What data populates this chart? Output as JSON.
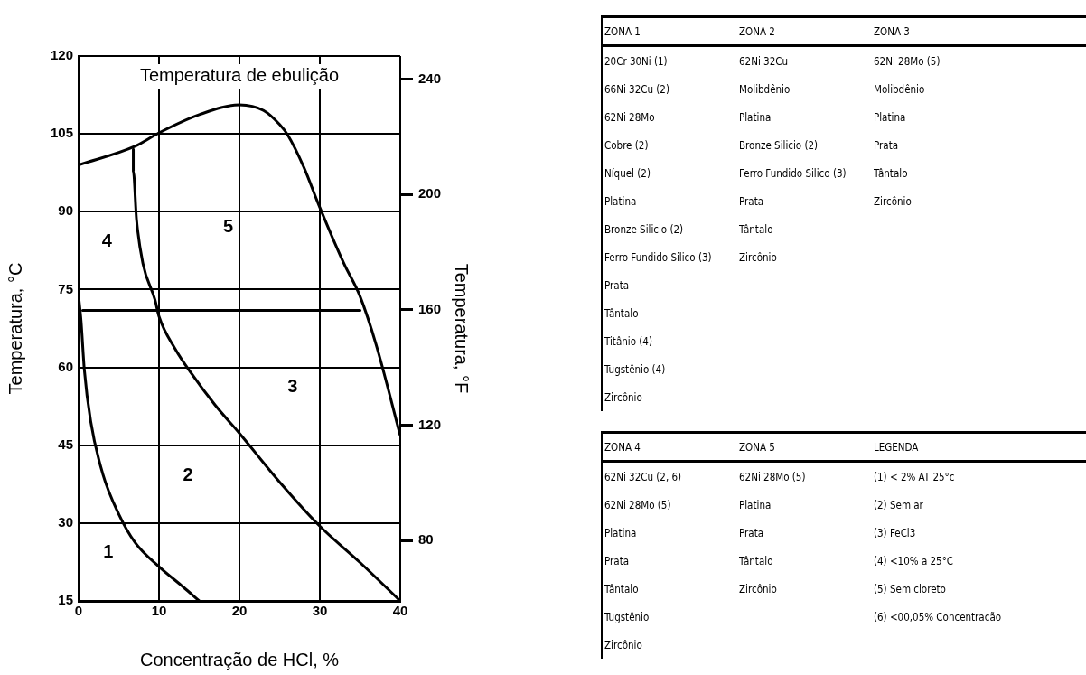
{
  "chart_data": [
    {
      "type": "line",
      "xlabel": "Concentração de HCl, %",
      "ylabel": "Temperatura, °C",
      "y2label": "Temperatura, °F",
      "xlim": [
        0,
        40
      ],
      "xticks": [
        0,
        10,
        20,
        30,
        40
      ],
      "ylim": [
        15,
        120
      ],
      "yticks": [
        15,
        30,
        45,
        60,
        75,
        90,
        105,
        120
      ],
      "y2lim": [
        59,
        248
      ],
      "y2ticks": [
        80,
        120,
        160,
        200,
        240
      ],
      "grid": true,
      "legend": false,
      "marker": "none",
      "line_style": "solid",
      "series": [
        {
          "color": "#000000",
          "x": [
            0,
            7,
            10,
            15,
            20,
            23,
            25,
            26,
            28,
            30,
            33,
            35,
            37,
            40
          ],
          "values": [
            99,
            102.6,
            105.2,
            108.7,
            110.6,
            109.5,
            106.8,
            104.8,
            98.6,
            90.8,
            80,
            73.7,
            64.4,
            46.9
          ]
        },
        {
          "color": "#000000",
          "x": [
            6.8,
            6.8,
            7.2,
            8,
            9.5,
            10,
            12,
            14,
            17,
            20,
            25,
            30,
            35,
            40
          ],
          "values": [
            102,
            97.8,
            88.5,
            80,
            73,
            69.8,
            63.6,
            58.9,
            52.7,
            47.3,
            37.9,
            29.4,
            22.4,
            15
          ]
        },
        {
          "color": "#000000",
          "x": [
            0,
            0.3,
            0.7,
            1.5,
            3,
            5,
            7,
            10,
            13,
            15
          ],
          "values": [
            73.7,
            69,
            59.7,
            49.6,
            39.5,
            31.7,
            26.3,
            21.6,
            17.7,
            15
          ]
        },
        {
          "color": "#000000",
          "x": [
            0.5,
            35
          ],
          "values": [
            71,
            71
          ]
        }
      ],
      "annotations": [
        "Temperatura de ebulição",
        "1",
        "2",
        "3",
        "4",
        "5"
      ]
    },
    {
      "type": "other",
      "categories": [
        "ZONA 1",
        "ZONA 2",
        "ZONA 3"
      ],
      "cell_labels": [
        [
          "20Cr 30Ni (1)",
          "62Ni 32Cu",
          "62Ni 28Mo (5)"
        ],
        [
          "66Ni 32Cu (2)",
          "Molibdênio",
          "Molibdênio"
        ],
        [
          "62Ni 28Mo",
          "Platina",
          "Platina"
        ],
        [
          "Cobre (2)",
          "Bronze Silicio (2)",
          "Prata"
        ],
        [
          "Níquel (2)",
          "Ferro Fundido Silico (3)",
          "Tântalo"
        ],
        [
          "Platina",
          "Prata",
          "Zircônio"
        ],
        [
          "Bronze Silicio (2)",
          "Tântalo",
          null
        ],
        [
          "Ferro Fundido Silico (3)",
          "Zircônio",
          null
        ],
        [
          "Prata",
          null,
          null
        ],
        [
          "Tântalo",
          null,
          null
        ],
        [
          "Titânio (4)",
          null,
          null
        ],
        [
          "Tugstênio (4)",
          null,
          null
        ],
        [
          "Zircônio",
          null,
          null
        ]
      ]
    },
    {
      "type": "other",
      "categories": [
        "ZONA 4",
        "ZONA 5",
        "LEGENDA"
      ],
      "cell_labels": [
        [
          "62Ni 32Cu (2, 6)",
          "62Ni 28Mo (5)",
          "(1) < 2% AT 25°c"
        ],
        [
          "62Ni 28Mo (5)",
          "Platina",
          "(2) Sem ar"
        ],
        [
          "Platina",
          "Prata",
          "(3) FeCl3"
        ],
        [
          "Prata",
          "Tântalo",
          "(4) <10% a 25°C"
        ],
        [
          "Tântalo",
          "Zircônio",
          "(5) Sem cloreto"
        ],
        [
          "Tugstênio",
          null,
          "(6) <00,05% Concentração"
        ],
        [
          "Zircônio",
          null,
          null
        ]
      ]
    }
  ]
}
